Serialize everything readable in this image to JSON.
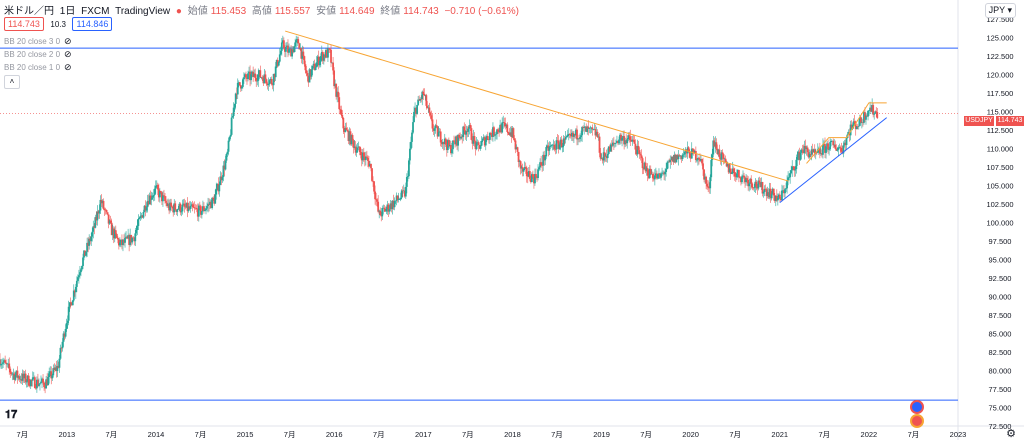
{
  "header": {
    "symbol": "米ドル／円",
    "interval": "1日",
    "source": "FXCM",
    "provider": "TradingView",
    "open_label": "始値",
    "open": "115.453",
    "high_label": "高値",
    "high": "115.557",
    "low_label": "安値",
    "low": "114.649",
    "close_label": "終値",
    "close": "114.743",
    "change": "−0.710 (−0.61%)"
  },
  "price_boxes": {
    "bid": "114.743",
    "spread": "10.3",
    "ask": "114.846"
  },
  "indicators": [
    "BB 20 close 3 0",
    "BB 20 close 2 0",
    "BB 20 close 1 0"
  ],
  "currency_button": "JPY",
  "now_label": "USDJPY",
  "last_price": "114.743",
  "colors": {
    "up": "#26a69a",
    "down": "#ef5350",
    "hline": "#2962ff",
    "trend_orange": "#f7a534",
    "trend_blue": "#2962ff"
  },
  "chart_data": {
    "type": "candlestick",
    "ylim": [
      72.5,
      128.75
    ],
    "y_ticks": [
      72.5,
      75,
      77.5,
      80,
      82.5,
      85,
      87.5,
      90,
      92.5,
      95,
      97.5,
      100,
      102.5,
      105,
      107.5,
      110,
      112.5,
      115,
      117.5,
      120,
      122.5,
      125,
      127.5
    ],
    "y_tick_labels": [
      "72.500",
      "75.000",
      "77.500",
      "80.000",
      "82.500",
      "85.000",
      "87.500",
      "90.000",
      "92.500",
      "95.000",
      "97.500",
      "100.000",
      "102.500",
      "105.000",
      "107.500",
      "110.000",
      "112.500",
      "115.000",
      "117.500",
      "120.000",
      "122.500",
      "125.000",
      "127.500"
    ],
    "x_range": [
      2012.25,
      2023.0
    ],
    "x_ticks": [
      {
        "t": 2012.5,
        "label": "7月"
      },
      {
        "t": 2013.0,
        "label": "2013"
      },
      {
        "t": 2013.5,
        "label": "7月"
      },
      {
        "t": 2014.0,
        "label": "2014"
      },
      {
        "t": 2014.5,
        "label": "7月"
      },
      {
        "t": 2015.0,
        "label": "2015"
      },
      {
        "t": 2015.5,
        "label": "7月"
      },
      {
        "t": 2016.0,
        "label": "2016"
      },
      {
        "t": 2016.5,
        "label": "7月"
      },
      {
        "t": 2017.0,
        "label": "2017"
      },
      {
        "t": 2017.5,
        "label": "7月"
      },
      {
        "t": 2018.0,
        "label": "2018"
      },
      {
        "t": 2018.5,
        "label": "7月"
      },
      {
        "t": 2019.0,
        "label": "2019"
      },
      {
        "t": 2019.5,
        "label": "7月"
      },
      {
        "t": 2020.0,
        "label": "2020"
      },
      {
        "t": 2020.5,
        "label": "7月"
      },
      {
        "t": 2021.0,
        "label": "2021"
      },
      {
        "t": 2021.5,
        "label": "7月"
      },
      {
        "t": 2022.0,
        "label": "2022"
      },
      {
        "t": 2022.5,
        "label": "7月"
      },
      {
        "t": 2023.0,
        "label": "2023"
      }
    ],
    "price_path": [
      [
        2012.25,
        81.5
      ],
      [
        2012.4,
        79.5
      ],
      [
        2012.6,
        78.5
      ],
      [
        2012.75,
        78.2
      ],
      [
        2012.9,
        80.5
      ],
      [
        2013.0,
        87
      ],
      [
        2013.15,
        94
      ],
      [
        2013.3,
        99
      ],
      [
        2013.38,
        103
      ],
      [
        2013.5,
        99
      ],
      [
        2013.6,
        97
      ],
      [
        2013.75,
        98
      ],
      [
        2013.9,
        103
      ],
      [
        2014.0,
        104.5
      ],
      [
        2014.15,
        102
      ],
      [
        2014.3,
        102
      ],
      [
        2014.5,
        101.5
      ],
      [
        2014.65,
        103
      ],
      [
        2014.8,
        109
      ],
      [
        2014.9,
        118
      ],
      [
        2015.0,
        119.5
      ],
      [
        2015.15,
        120
      ],
      [
        2015.3,
        119
      ],
      [
        2015.42,
        124
      ],
      [
        2015.5,
        123
      ],
      [
        2015.6,
        124.5
      ],
      [
        2015.7,
        119.5
      ],
      [
        2015.85,
        122.5
      ],
      [
        2015.95,
        123
      ],
      [
        2016.0,
        119
      ],
      [
        2016.1,
        113
      ],
      [
        2016.25,
        110
      ],
      [
        2016.4,
        108
      ],
      [
        2016.5,
        101
      ],
      [
        2016.6,
        102
      ],
      [
        2016.8,
        104
      ],
      [
        2016.9,
        115
      ],
      [
        2017.0,
        117.5
      ],
      [
        2017.1,
        113
      ],
      [
        2017.3,
        110
      ],
      [
        2017.5,
        113
      ],
      [
        2017.6,
        110
      ],
      [
        2017.75,
        112
      ],
      [
        2017.9,
        113
      ],
      [
        2018.0,
        112
      ],
      [
        2018.1,
        107
      ],
      [
        2018.25,
        106
      ],
      [
        2018.4,
        110
      ],
      [
        2018.6,
        111
      ],
      [
        2018.8,
        112.5
      ],
      [
        2018.95,
        112
      ],
      [
        2019.0,
        108.5
      ],
      [
        2019.2,
        111.5
      ],
      [
        2019.35,
        111
      ],
      [
        2019.5,
        107
      ],
      [
        2019.65,
        106
      ],
      [
        2019.8,
        108.5
      ],
      [
        2019.95,
        109.5
      ],
      [
        2020.1,
        109
      ],
      [
        2020.2,
        104
      ],
      [
        2020.25,
        111
      ],
      [
        2020.4,
        107.5
      ],
      [
        2020.6,
        106
      ],
      [
        2020.75,
        105
      ],
      [
        2020.9,
        104
      ],
      [
        2021.0,
        103
      ],
      [
        2021.1,
        106
      ],
      [
        2021.25,
        110
      ],
      [
        2021.4,
        109
      ],
      [
        2021.55,
        110.5
      ],
      [
        2021.7,
        110
      ],
      [
        2021.8,
        113
      ],
      [
        2021.9,
        113.5
      ],
      [
        2022.0,
        115.5
      ],
      [
        2022.1,
        114.7
      ]
    ],
    "horizontal_lines": [
      123.6,
      76.0
    ],
    "trendlines": [
      {
        "color": "orange",
        "points": [
          [
            2015.45,
            125.9
          ],
          [
            2021.1,
            105.6
          ]
        ]
      },
      {
        "color": "blue",
        "points": [
          [
            2021.0,
            102.7
          ],
          [
            2022.2,
            114.2
          ]
        ]
      },
      {
        "color": "orange",
        "points": [
          [
            2021.3,
            108.0
          ],
          [
            2021.55,
            111.5
          ],
          [
            2021.75,
            111.5
          ],
          [
            2022.0,
            116.2
          ],
          [
            2022.2,
            116.2
          ]
        ]
      }
    ]
  }
}
